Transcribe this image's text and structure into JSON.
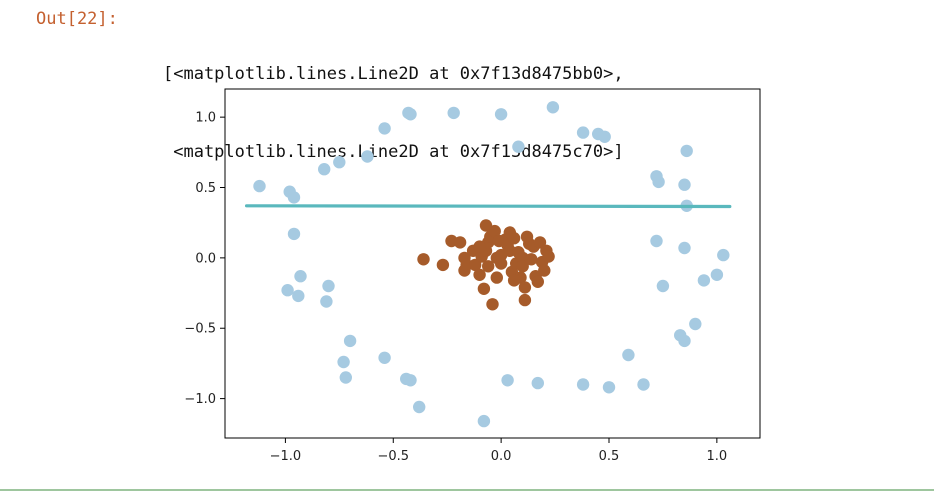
{
  "cell": {
    "prompt": "Out[22]:",
    "output_lines": [
      "[<matplotlib.lines.Line2D at 0x7f13d8475bb0>,",
      " <matplotlib.lines.Line2D at 0x7f13d8475c70>]"
    ]
  },
  "chart_data": {
    "type": "scatter",
    "title": "",
    "xlabel": "",
    "ylabel": "",
    "xlim": [
      -1.28,
      1.2
    ],
    "ylim": [
      -1.28,
      1.2
    ],
    "xticks": [
      -1.0,
      -0.5,
      0.0,
      0.5,
      1.0
    ],
    "xtick_labels": [
      "−1.0",
      "−0.5",
      "0.0",
      "0.5",
      "1.0"
    ],
    "yticks": [
      1.0,
      0.5,
      0.0,
      -0.5,
      -1.0
    ],
    "ytick_labels": [
      "1.0",
      "0.5",
      "0.0",
      "−0.5",
      "−1.0"
    ],
    "grid": false,
    "series": [
      {
        "color": "#a6cae1",
        "points": [
          [
            -1.12,
            0.51
          ],
          [
            -0.98,
            0.47
          ],
          [
            -0.96,
            0.43
          ],
          [
            -0.96,
            0.17
          ],
          [
            -0.82,
            0.63
          ],
          [
            -0.75,
            0.68
          ],
          [
            -0.62,
            0.72
          ],
          [
            -0.54,
            0.92
          ],
          [
            -0.43,
            1.03
          ],
          [
            -0.42,
            1.02
          ],
          [
            -0.22,
            1.03
          ],
          [
            0.0,
            1.02
          ],
          [
            0.24,
            1.07
          ],
          [
            0.38,
            0.89
          ],
          [
            0.45,
            0.88
          ],
          [
            0.48,
            0.86
          ],
          [
            0.08,
            0.79
          ],
          [
            0.72,
            0.58
          ],
          [
            0.73,
            0.54
          ],
          [
            0.86,
            0.76
          ],
          [
            0.85,
            0.52
          ],
          [
            0.86,
            0.37
          ],
          [
            0.72,
            0.12
          ],
          [
            0.85,
            0.07
          ],
          [
            1.03,
            0.02
          ],
          [
            1.0,
            -0.12
          ],
          [
            0.94,
            -0.16
          ],
          [
            0.75,
            -0.2
          ],
          [
            0.9,
            -0.47
          ],
          [
            0.83,
            -0.55
          ],
          [
            0.85,
            -0.59
          ],
          [
            0.59,
            -0.69
          ],
          [
            0.66,
            -0.9
          ],
          [
            0.5,
            -0.92
          ],
          [
            0.38,
            -0.9
          ],
          [
            0.17,
            -0.89
          ],
          [
            0.03,
            -0.87
          ],
          [
            -0.08,
            -1.16
          ],
          [
            -0.38,
            -1.06
          ],
          [
            -0.42,
            -0.87
          ],
          [
            -0.44,
            -0.86
          ],
          [
            -0.54,
            -0.71
          ],
          [
            -0.7,
            -0.59
          ],
          [
            -0.73,
            -0.74
          ],
          [
            -0.72,
            -0.85
          ],
          [
            -0.8,
            -0.2
          ],
          [
            -0.81,
            -0.31
          ],
          [
            -0.93,
            -0.13
          ],
          [
            -0.99,
            -0.23
          ],
          [
            -0.94,
            -0.27
          ]
        ]
      },
      {
        "color": "#a65b2a",
        "points": [
          [
            -0.36,
            -0.01
          ],
          [
            -0.27,
            -0.05
          ],
          [
            -0.23,
            0.12
          ],
          [
            -0.19,
            0.11
          ],
          [
            -0.17,
            0.0
          ],
          [
            -0.17,
            -0.09
          ],
          [
            -0.16,
            -0.05
          ],
          [
            -0.13,
            0.05
          ],
          [
            -0.12,
            -0.05
          ],
          [
            -0.1,
            -0.12
          ],
          [
            -0.09,
            0.01
          ],
          [
            -0.08,
            -0.22
          ],
          [
            -0.07,
            0.23
          ],
          [
            -0.07,
            0.05
          ],
          [
            -0.06,
            0.11
          ],
          [
            -0.06,
            -0.06
          ],
          [
            -0.05,
            0.15
          ],
          [
            -0.04,
            -0.33
          ],
          [
            -0.03,
            0.19
          ],
          [
            -0.02,
            0.0
          ],
          [
            -0.02,
            -0.14
          ],
          [
            -0.01,
            0.12
          ],
          [
            0.0,
            -0.04
          ],
          [
            0.02,
            0.13
          ],
          [
            0.03,
            0.09
          ],
          [
            0.04,
            0.05
          ],
          [
            0.05,
            -0.1
          ],
          [
            0.06,
            0.14
          ],
          [
            0.07,
            -0.04
          ],
          [
            0.08,
            0.04
          ],
          [
            0.09,
            -0.14
          ],
          [
            0.1,
            0.0
          ],
          [
            0.1,
            -0.06
          ],
          [
            0.11,
            -0.21
          ],
          [
            0.11,
            -0.3
          ],
          [
            0.12,
            0.15
          ],
          [
            0.13,
            0.1
          ],
          [
            0.14,
            -0.01
          ],
          [
            0.15,
            0.08
          ],
          [
            0.16,
            -0.13
          ],
          [
            0.17,
            -0.17
          ],
          [
            0.18,
            0.11
          ],
          [
            0.19,
            -0.03
          ],
          [
            0.2,
            -0.09
          ],
          [
            0.21,
            0.05
          ],
          [
            0.22,
            0.01
          ],
          [
            0.04,
            0.18
          ],
          [
            -0.1,
            0.08
          ],
          [
            0.0,
            0.02
          ],
          [
            0.06,
            -0.16
          ]
        ]
      }
    ],
    "lines": [
      {
        "color": "#5ab8bd",
        "x": [
          -1.18,
          1.06
        ],
        "y": [
          0.37,
          0.365
        ]
      }
    ]
  }
}
